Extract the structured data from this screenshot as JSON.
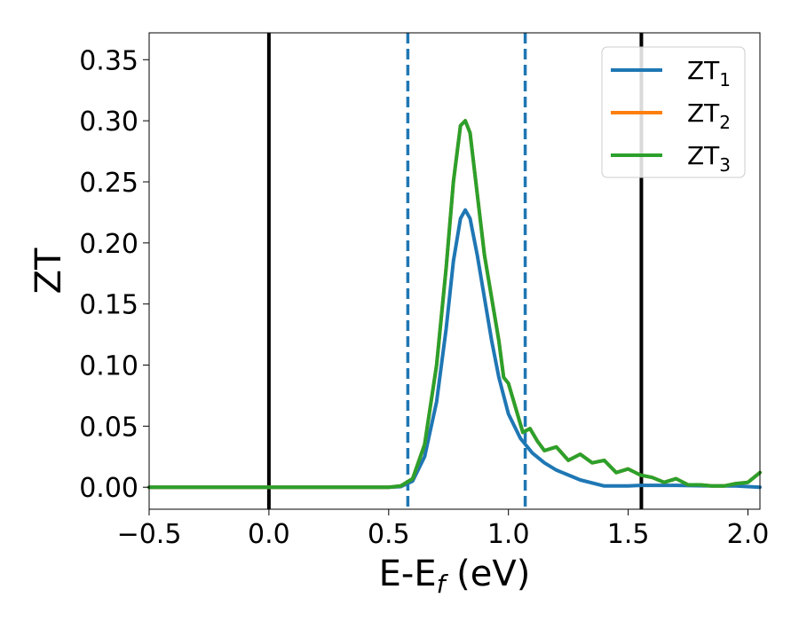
{
  "chart_data": {
    "type": "line",
    "xlabel": "E-E",
    "xlabel_sub": "f",
    "xlabel_unit": " (eV)",
    "ylabel": "ZT",
    "xlim": [
      -0.5,
      2.05
    ],
    "ylim": [
      -0.018,
      0.372
    ],
    "xticks": [
      -0.5,
      0.0,
      0.5,
      1.0,
      1.5,
      2.0
    ],
    "xtick_labels": [
      "−0.5",
      "0.0",
      "0.5",
      "1.0",
      "1.5",
      "2.0"
    ],
    "yticks": [
      0.0,
      0.05,
      0.1,
      0.15,
      0.2,
      0.25,
      0.3,
      0.35
    ],
    "ytick_labels": [
      "0.00",
      "0.05",
      "0.10",
      "0.15",
      "0.20",
      "0.25",
      "0.30",
      "0.35"
    ],
    "grid": false,
    "legend_position": "top-right",
    "vertical_lines": [
      {
        "x": 0.0,
        "style": "solid",
        "color": "#000000"
      },
      {
        "x": 1.555,
        "style": "solid",
        "color": "#000000"
      },
      {
        "x": 0.58,
        "style": "dashed",
        "color": "#1f77b4"
      },
      {
        "x": 1.07,
        "style": "dashed",
        "color": "#1f77b4"
      }
    ],
    "series": [
      {
        "name": "ZT",
        "subscript": "1",
        "color": "#1f77b4",
        "x": [
          -0.5,
          0.0,
          0.5,
          0.55,
          0.6,
          0.65,
          0.7,
          0.74,
          0.77,
          0.8,
          0.82,
          0.84,
          0.87,
          0.9,
          0.93,
          0.96,
          1.0,
          1.05,
          1.1,
          1.15,
          1.2,
          1.3,
          1.4,
          1.5,
          1.55,
          1.7,
          1.85,
          1.95,
          2.05
        ],
        "y": [
          0.0,
          0.0,
          0.0,
          0.0005,
          0.005,
          0.025,
          0.07,
          0.13,
          0.185,
          0.22,
          0.227,
          0.22,
          0.19,
          0.155,
          0.12,
          0.09,
          0.06,
          0.04,
          0.028,
          0.02,
          0.014,
          0.006,
          0.001,
          0.001,
          0.0015,
          0.0015,
          0.001,
          0.001,
          0.0
        ]
      },
      {
        "name": "ZT",
        "subscript": "2",
        "color": "#ff7f0e",
        "x": [
          -0.5,
          0.0,
          0.5,
          0.55,
          0.6,
          0.65,
          0.7,
          0.74,
          0.77,
          0.8,
          0.82,
          0.84,
          0.87,
          0.9,
          0.93,
          0.96,
          0.98,
          1.0,
          1.03,
          1.06,
          1.09,
          1.12,
          1.15,
          1.2,
          1.25,
          1.3,
          1.35,
          1.4,
          1.45,
          1.5,
          1.55,
          1.6,
          1.65,
          1.7,
          1.75,
          1.8,
          1.85,
          1.9,
          1.95,
          2.0,
          2.05
        ],
        "y": [
          0.0,
          0.0,
          0.0,
          0.001,
          0.007,
          0.035,
          0.1,
          0.18,
          0.25,
          0.296,
          0.3,
          0.29,
          0.24,
          0.19,
          0.155,
          0.12,
          0.09,
          0.085,
          0.065,
          0.045,
          0.048,
          0.038,
          0.03,
          0.033,
          0.022,
          0.027,
          0.02,
          0.022,
          0.012,
          0.015,
          0.01,
          0.008,
          0.004,
          0.007,
          0.002,
          0.002,
          0.001,
          0.001,
          0.003,
          0.004,
          0.012
        ]
      },
      {
        "name": "ZT",
        "subscript": "3",
        "color": "#2ca02c",
        "x": [
          -0.5,
          0.0,
          0.5,
          0.55,
          0.6,
          0.65,
          0.7,
          0.74,
          0.77,
          0.8,
          0.82,
          0.84,
          0.87,
          0.9,
          0.93,
          0.96,
          0.98,
          1.0,
          1.03,
          1.06,
          1.09,
          1.12,
          1.15,
          1.2,
          1.25,
          1.3,
          1.35,
          1.4,
          1.45,
          1.5,
          1.55,
          1.6,
          1.65,
          1.7,
          1.75,
          1.8,
          1.85,
          1.9,
          1.95,
          2.0,
          2.05
        ],
        "y": [
          0.0,
          0.0,
          0.0,
          0.001,
          0.007,
          0.035,
          0.1,
          0.18,
          0.25,
          0.296,
          0.3,
          0.29,
          0.24,
          0.19,
          0.155,
          0.12,
          0.09,
          0.085,
          0.065,
          0.045,
          0.048,
          0.038,
          0.03,
          0.033,
          0.022,
          0.027,
          0.02,
          0.022,
          0.012,
          0.015,
          0.01,
          0.008,
          0.004,
          0.007,
          0.002,
          0.002,
          0.001,
          0.001,
          0.003,
          0.004,
          0.012
        ]
      }
    ]
  }
}
